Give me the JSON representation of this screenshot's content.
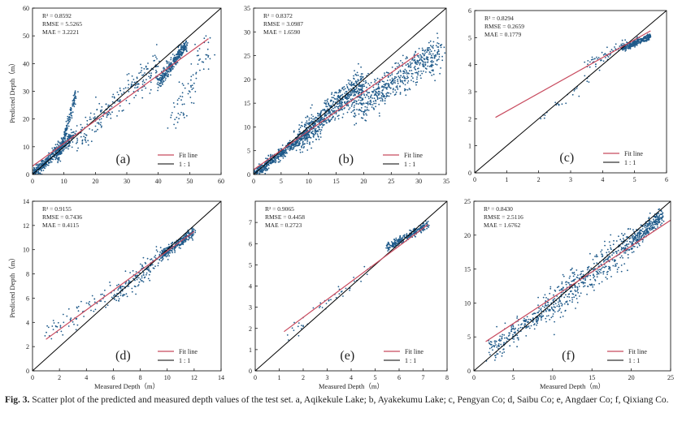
{
  "figure_label": "Fig. 3.",
  "caption_text": "Scatter plot of the predicted and measured depth values of the test set. a, Aqikekule Lake; b, Ayakekumu Lake; c, Pengyan Co; d, Saibu Co; e, Angdaer Co; f, Qixiang Co.",
  "colors": {
    "points": "#1f5a8a",
    "fit": "#c84a5e",
    "ref": "#000000"
  },
  "chart_data": [
    {
      "type": "scatter",
      "panel": "(a)",
      "xlim": [
        0,
        60
      ],
      "ylim": [
        0,
        60
      ],
      "xticks": [
        0,
        10,
        20,
        30,
        40,
        50,
        60
      ],
      "yticks": [
        0,
        10,
        20,
        30,
        40,
        50,
        60
      ],
      "ylabel": "Predicted Depth（m）",
      "xlabel": "",
      "stats": [
        "R² = 0.8592",
        "RMSE = 5.5265",
        "MAE = 3.2221"
      ],
      "fit": {
        "x": [
          0,
          56
        ],
        "y": [
          3.0,
          49.0
        ]
      },
      "legend": [
        "Fit line",
        "1 : 1"
      ],
      "clusters": [
        {
          "x": [
            0,
            13
          ],
          "y": [
            0,
            14
          ],
          "noise": 2.2,
          "n": 420
        },
        {
          "x": [
            8,
            14
          ],
          "y": [
            5,
            30
          ],
          "noise": 1.8,
          "n": 150
        },
        {
          "x": [
            13,
            40
          ],
          "y": [
            12,
            40
          ],
          "noise": 5.5,
          "n": 220
        },
        {
          "x": [
            40,
            49
          ],
          "y": [
            33,
            47
          ],
          "noise": 2.5,
          "n": 330
        },
        {
          "x": [
            45,
            56
          ],
          "y": [
            20,
            45
          ],
          "noise": 7.0,
          "n": 80
        }
      ]
    },
    {
      "type": "scatter",
      "panel": "(b)",
      "xlim": [
        0,
        35
      ],
      "ylim": [
        0,
        35
      ],
      "xticks": [
        0,
        5,
        10,
        15,
        20,
        25,
        30,
        35
      ],
      "yticks": [
        0,
        5,
        10,
        15,
        20,
        25,
        30,
        35
      ],
      "ylabel": "",
      "xlabel": "",
      "stats": [
        "R² = 0.8372",
        "RMSE = 3.0987",
        "MAE = 1.6590"
      ],
      "fit": {
        "x": [
          0,
          30
        ],
        "y": [
          1.0,
          25.5
        ]
      },
      "legend": [
        "Fit line",
        "1 : 1"
      ],
      "clusters": [
        {
          "x": [
            0,
            10
          ],
          "y": [
            0,
            9
          ],
          "noise": 1.2,
          "n": 450
        },
        {
          "x": [
            8,
            20
          ],
          "y": [
            7,
            20
          ],
          "noise": 3.0,
          "n": 650
        },
        {
          "x": [
            18,
            34
          ],
          "y": [
            14,
            26
          ],
          "noise": 3.8,
          "n": 550
        }
      ]
    },
    {
      "type": "scatter",
      "panel": "(c)",
      "xlim": [
        0,
        6
      ],
      "ylim": [
        0,
        6
      ],
      "xticks": [
        0,
        1,
        2,
        3,
        4,
        5,
        6
      ],
      "yticks": [
        0,
        1,
        2,
        3,
        4,
        5,
        6
      ],
      "ylabel": "",
      "xlabel": "",
      "stats": [
        "R² = 0.8294",
        "RMSE = 0.2659",
        "MAE = 0.1779"
      ],
      "fit": {
        "x": [
          0.65,
          5.5
        ],
        "y": [
          2.05,
          5.25
        ]
      },
      "legend": [
        "Fit line",
        "1 : 1"
      ],
      "clusters": [
        {
          "x": [
            2,
            4
          ],
          "y": [
            2,
            3.9
          ],
          "noise": 0.25,
          "n": 25
        },
        {
          "x": [
            3.5,
            4.8
          ],
          "y": [
            4.0,
            4.8
          ],
          "noise": 0.25,
          "n": 60
        },
        {
          "x": [
            4.6,
            5.5
          ],
          "y": [
            4.6,
            5.05
          ],
          "noise": 0.12,
          "n": 280
        }
      ]
    },
    {
      "type": "scatter",
      "panel": "(d)",
      "xlim": [
        0,
        14
      ],
      "ylim": [
        0,
        14
      ],
      "xticks": [
        0,
        2,
        4,
        6,
        8,
        10,
        12,
        14
      ],
      "yticks": [
        0,
        2,
        4,
        6,
        8,
        10,
        12,
        14
      ],
      "ylabel": "Predicted Depth（m）",
      "xlabel": "Measured Depth（m）",
      "stats": [
        "R² = 0.9155",
        "RMSE = 0.7436",
        "MAE = 0.4115"
      ],
      "fit": {
        "x": [
          1,
          12
        ],
        "y": [
          2.6,
          11.5
        ]
      },
      "legend": [
        "Fit line",
        "1 : 1"
      ],
      "clusters": [
        {
          "x": [
            1,
            6
          ],
          "y": [
            3,
            6.5
          ],
          "noise": 1.0,
          "n": 70
        },
        {
          "x": [
            6,
            9.5
          ],
          "y": [
            6,
            9.5
          ],
          "noise": 0.9,
          "n": 150
        },
        {
          "x": [
            9.5,
            12
          ],
          "y": [
            9.5,
            11.5
          ],
          "noise": 0.45,
          "n": 300
        }
      ]
    },
    {
      "type": "scatter",
      "panel": "(e)",
      "xlim": [
        0,
        8
      ],
      "ylim": [
        0,
        8
      ],
      "xticks": [
        0,
        1,
        2,
        3,
        4,
        5,
        6,
        7,
        8
      ],
      "yticks": [
        0,
        1,
        2,
        3,
        4,
        5,
        6,
        7
      ],
      "ylabel": "",
      "xlabel": "Measured Depth（m）",
      "stats": [
        "R² = 0.9065",
        "RMSE = 0.4458",
        "MAE = 0.2723"
      ],
      "fit": {
        "x": [
          1.2,
          7.2
        ],
        "y": [
          1.85,
          6.9
        ]
      },
      "legend": [
        "Fit line",
        "1 : 1"
      ],
      "clusters": [
        {
          "x": [
            1.2,
            5
          ],
          "y": [
            1.5,
            5.0
          ],
          "noise": 0.35,
          "n": 45
        },
        {
          "x": [
            5.5,
            7.2
          ],
          "y": [
            5.8,
            6.9
          ],
          "noise": 0.2,
          "n": 260
        }
      ]
    },
    {
      "type": "scatter",
      "panel": "(f)",
      "xlim": [
        0,
        25
      ],
      "ylim": [
        0,
        25
      ],
      "xticks": [
        0,
        5,
        10,
        15,
        20,
        25
      ],
      "yticks": [
        0,
        5,
        10,
        15,
        20,
        25
      ],
      "ylabel": "",
      "xlabel": "Measured Depth（m）",
      "stats": [
        "R² = 0.8430",
        "RMSE = 2.5116",
        "MAE = 1.6762"
      ],
      "fit": {
        "x": [
          1.5,
          25
        ],
        "y": [
          4.3,
          22.2
        ]
      },
      "legend": [
        "Fit line",
        "1 : 1"
      ],
      "clusters": [
        {
          "x": [
            2,
            9
          ],
          "y": [
            3,
            9
          ],
          "noise": 1.8,
          "n": 200
        },
        {
          "x": [
            9,
            20
          ],
          "y": [
            9,
            19
          ],
          "noise": 2.8,
          "n": 420
        },
        {
          "x": [
            20,
            24
          ],
          "y": [
            19,
            23
          ],
          "noise": 1.2,
          "n": 260
        }
      ]
    }
  ]
}
